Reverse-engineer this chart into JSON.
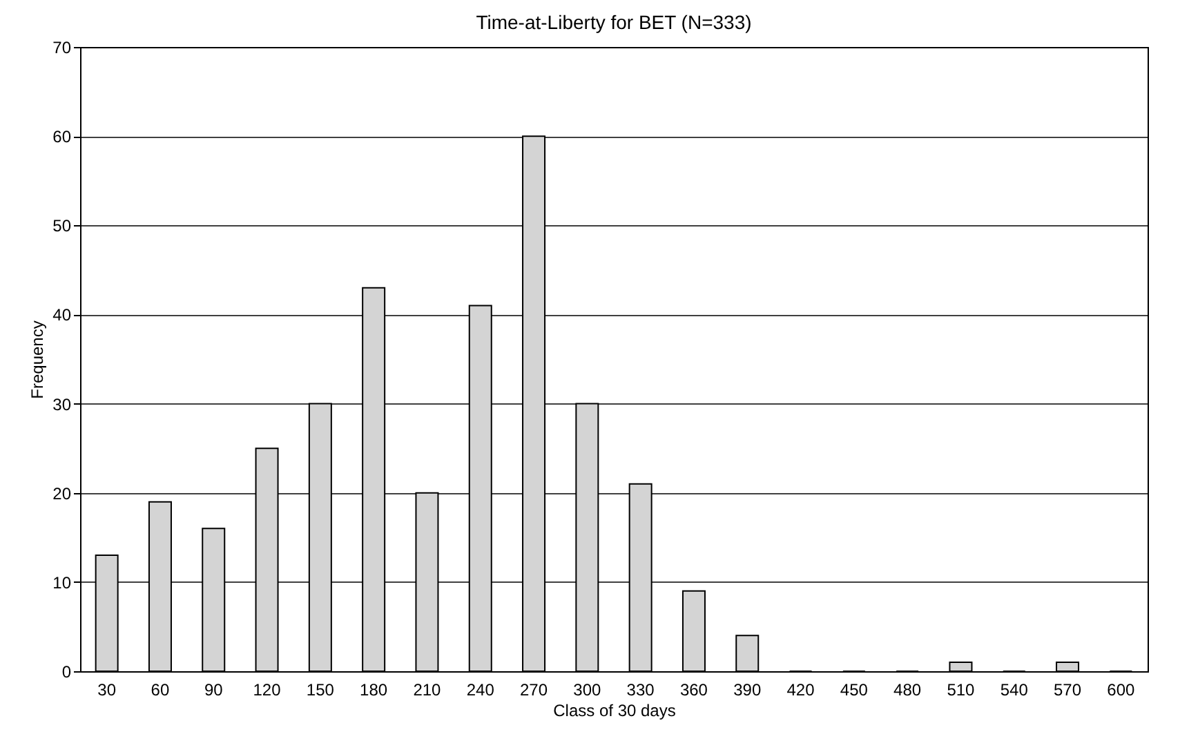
{
  "chart_data": {
    "type": "bar",
    "title": "Time-at-Liberty for BET (N=333)",
    "xlabel": "Class of 30 days",
    "ylabel": "Frequency",
    "categories": [
      "30",
      "60",
      "90",
      "120",
      "150",
      "180",
      "210",
      "240",
      "270",
      "300",
      "330",
      "360",
      "390",
      "420",
      "450",
      "480",
      "510",
      "540",
      "570",
      "600"
    ],
    "values": [
      13,
      19,
      16,
      25,
      30,
      43,
      20,
      41,
      60,
      30,
      21,
      9,
      4,
      0,
      0,
      0,
      1,
      0,
      1,
      0
    ],
    "color": "#d4d4d4",
    "ylim": [
      0,
      70
    ],
    "yticks": [
      0,
      10,
      20,
      30,
      40,
      50,
      60,
      70
    ],
    "grid": "y"
  }
}
